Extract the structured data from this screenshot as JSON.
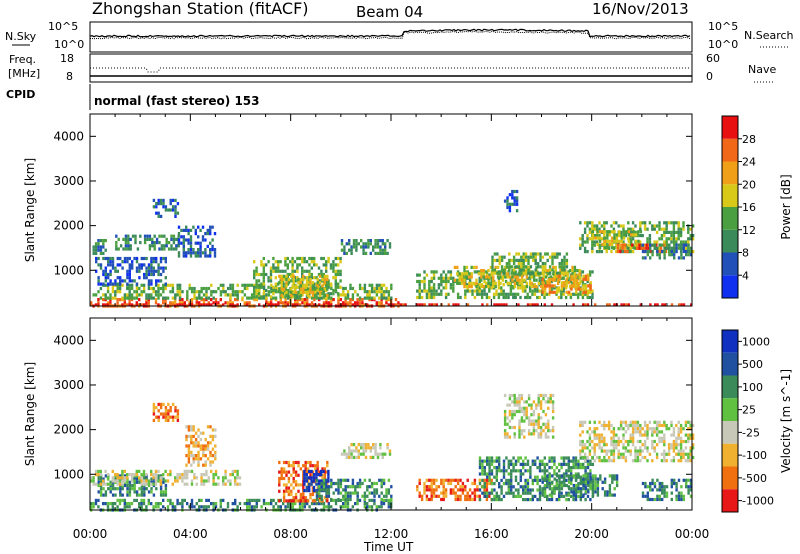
{
  "header": {
    "station": "Zhongshan Station (fitACF)",
    "beam": "Beam 04",
    "date": "16/Nov/2013",
    "nsky_label": "N.Sky",
    "nsearch_label": "N.Search",
    "freq_label_1": "Freq.",
    "freq_label_2": "[MHz]",
    "nave_label": "Nave",
    "cpid_label": "CPID",
    "cpid_text": "normal (fast stereo) 153",
    "noise_ticks": [
      "10^5",
      "10^0"
    ],
    "freq_ticks": [
      "18",
      "8"
    ],
    "nave_ticks": [
      "60",
      "0"
    ]
  },
  "chart_data": [
    {
      "type": "heatmap",
      "name": "power",
      "ylabel": "Slant Range [km]",
      "xlabel": "Time UT",
      "x_ticks": [
        "00:00",
        "04:00",
        "08:00",
        "12:00",
        "16:00",
        "20:00",
        "00:00"
      ],
      "y_ticks": [
        1000,
        2000,
        3000,
        4000
      ],
      "ylim": [
        200,
        4500
      ],
      "xlim_hours": [
        0,
        24
      ],
      "colorbar": {
        "label": "Power [dB]",
        "ticks": [
          4,
          8,
          12,
          16,
          20,
          24,
          28
        ],
        "colors": [
          "#1030f0",
          "#2050b8",
          "#3a8a5a",
          "#4aa040",
          "#d8c818",
          "#f0a018",
          "#f06818",
          "#e81010"
        ]
      },
      "regions": [
        {
          "t0": 0.0,
          "t1": 12.3,
          "r0": 220,
          "r1": 380,
          "level": 6
        },
        {
          "t0": 0.1,
          "t1": 12.0,
          "r0": 380,
          "r1": 700,
          "level": 3
        },
        {
          "t0": 0.2,
          "t1": 3.0,
          "r0": 700,
          "r1": 1300,
          "level": 1
        },
        {
          "t0": 0.1,
          "t1": 0.6,
          "r0": 1400,
          "r1": 1700,
          "level": 2
        },
        {
          "t0": 1.0,
          "t1": 3.5,
          "r0": 1500,
          "r1": 1800,
          "level": 2
        },
        {
          "t0": 2.5,
          "t1": 3.5,
          "r0": 2200,
          "r1": 2600,
          "level": 1
        },
        {
          "t0": 3.5,
          "t1": 5.0,
          "r0": 1300,
          "r1": 2000,
          "level": 1
        },
        {
          "t0": 6.5,
          "t1": 10.0,
          "r0": 400,
          "r1": 1300,
          "level": 3
        },
        {
          "t0": 7.5,
          "t1": 9.5,
          "r0": 400,
          "r1": 900,
          "level": 4
        },
        {
          "t0": 10.0,
          "t1": 12.0,
          "r0": 1350,
          "r1": 1700,
          "level": 2
        },
        {
          "t0": 13.0,
          "t1": 20.0,
          "r0": 400,
          "r1": 1000,
          "level": 3
        },
        {
          "t0": 14.5,
          "t1": 19.5,
          "r0": 600,
          "r1": 1100,
          "level": 4
        },
        {
          "t0": 16.0,
          "t1": 19.0,
          "r0": 900,
          "r1": 1400,
          "level": 3
        },
        {
          "t0": 18.0,
          "t1": 20.0,
          "r0": 500,
          "r1": 900,
          "level": 5
        },
        {
          "t0": 16.5,
          "t1": 17.0,
          "r0": 2300,
          "r1": 2800,
          "level": 1
        },
        {
          "t0": 19.5,
          "t1": 24.0,
          "r0": 1400,
          "r1": 2100,
          "level": 3
        },
        {
          "t0": 20.0,
          "t1": 22.0,
          "r0": 1500,
          "r1": 1900,
          "level": 4
        },
        {
          "t0": 21.0,
          "t1": 23.0,
          "r0": 1450,
          "r1": 1600,
          "level": 6
        },
        {
          "t0": 22.0,
          "t1": 24.0,
          "r0": 1300,
          "r1": 1600,
          "level": 2
        },
        {
          "t0": 0.0,
          "t1": 24.0,
          "r0": 200,
          "r1": 260,
          "level": 7
        }
      ]
    },
    {
      "type": "heatmap",
      "name": "velocity",
      "ylabel": "Slant Range [km]",
      "xlabel": "Time UT",
      "x_ticks": [
        "00:00",
        "04:00",
        "08:00",
        "12:00",
        "16:00",
        "20:00",
        "00:00"
      ],
      "y_ticks": [
        1000,
        2000,
        3000,
        4000
      ],
      "ylim": [
        200,
        4500
      ],
      "xlim_hours": [
        0,
        24
      ],
      "colorbar": {
        "label": "Velocity [m s^-1]",
        "ticks": [
          "1000",
          "500",
          "100",
          "25",
          "-25",
          "-100",
          "-500",
          "-1000"
        ],
        "colors": [
          "#1030c0",
          "#2050a0",
          "#3a8a5a",
          "#60c040",
          "#c8c8b8",
          "#f0b030",
          "#f07010",
          "#e81818"
        ]
      },
      "regions": [
        {
          "t0": 0.0,
          "t1": 12.0,
          "r0": 220,
          "r1": 450,
          "level": 2
        },
        {
          "t0": 0.3,
          "t1": 3.0,
          "r0": 500,
          "r1": 1000,
          "level": 2
        },
        {
          "t0": 2.5,
          "t1": 3.5,
          "r0": 2200,
          "r1": 2600,
          "level": 6
        },
        {
          "t0": 3.8,
          "t1": 5.0,
          "r0": 1200,
          "r1": 2100,
          "level": 5
        },
        {
          "t0": 0.0,
          "t1": 6.0,
          "r0": 800,
          "r1": 1100,
          "level": 4
        },
        {
          "t0": 7.5,
          "t1": 9.5,
          "r0": 400,
          "r1": 1300,
          "level": 6
        },
        {
          "t0": 8.5,
          "t1": 9.5,
          "r0": 600,
          "r1": 1100,
          "level": 0
        },
        {
          "t0": 9.0,
          "t1": 12.0,
          "r0": 400,
          "r1": 900,
          "level": 2
        },
        {
          "t0": 10.0,
          "t1": 12.0,
          "r0": 1350,
          "r1": 1700,
          "level": 4
        },
        {
          "t0": 13.0,
          "t1": 16.0,
          "r0": 400,
          "r1": 900,
          "level": 6
        },
        {
          "t0": 15.5,
          "t1": 20.0,
          "r0": 400,
          "r1": 1400,
          "level": 2
        },
        {
          "t0": 18.0,
          "t1": 21.0,
          "r0": 500,
          "r1": 1000,
          "level": 2
        },
        {
          "t0": 16.5,
          "t1": 18.5,
          "r0": 1800,
          "r1": 2800,
          "level": 4
        },
        {
          "t0": 19.5,
          "t1": 24.0,
          "r0": 1300,
          "r1": 2200,
          "level": 4
        },
        {
          "t0": 22.0,
          "t1": 24.0,
          "r0": 400,
          "r1": 900,
          "level": 2
        }
      ]
    }
  ]
}
